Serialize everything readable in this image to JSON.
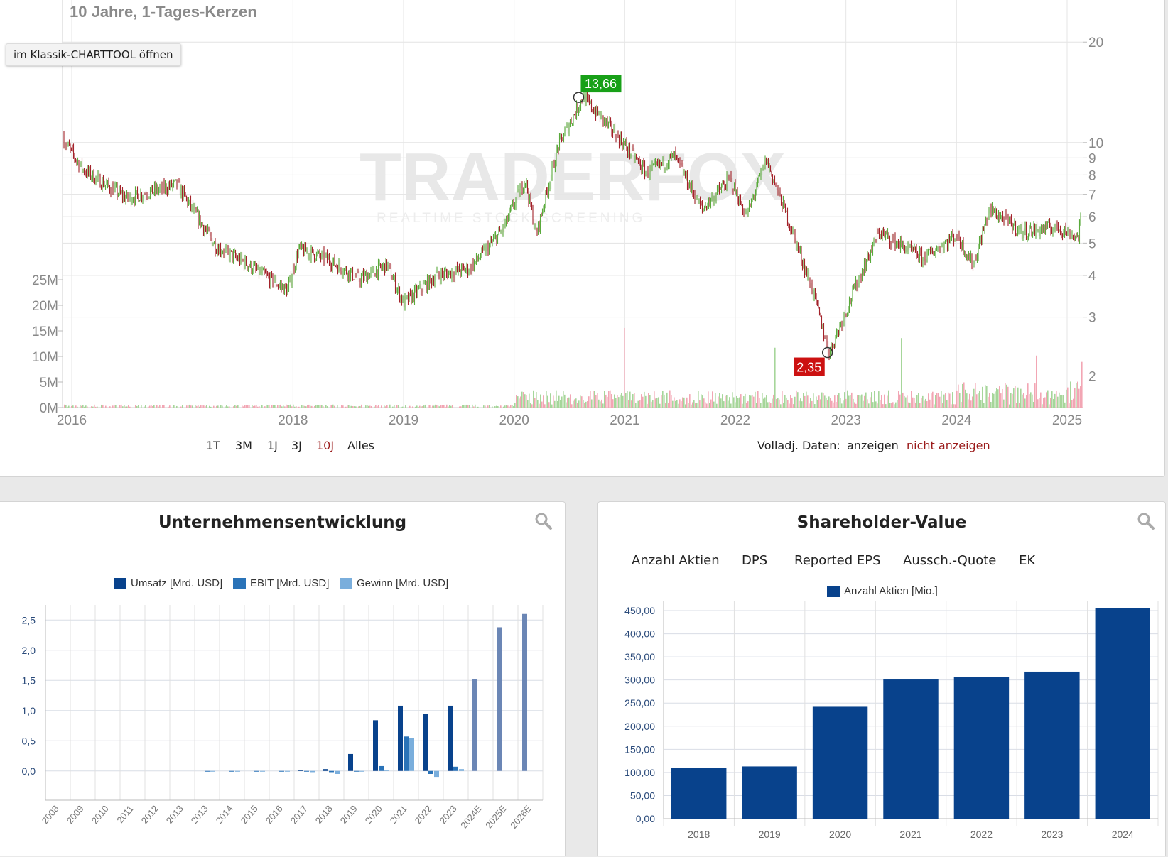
{
  "price_chart": {
    "title": "10 Jahre, 1-Tages-Kerzen",
    "klassik_button": "im Klassik-CHARTTOOL öffnen",
    "high_marker": "13,66",
    "low_marker": "2,35",
    "watermark": {
      "brand": "TRADERFOX",
      "tagline": "REALTIME STOCK SCREENING"
    },
    "price_ticks": [
      "20",
      "10",
      "9",
      "8",
      "7",
      "6",
      "5",
      "4",
      "3",
      "2"
    ],
    "volume_ticks": [
      "25M",
      "20M",
      "15M",
      "10M",
      "5M",
      "0M"
    ],
    "year_ticks": [
      "2016",
      "2018",
      "2019",
      "2020",
      "2021",
      "2022",
      "2023",
      "2024",
      "2025"
    ],
    "range_buttons": [
      "1T",
      "3M",
      "1J",
      "3J",
      "10J",
      "Alles"
    ],
    "active_range": "10J",
    "volladj_label": "Volladj. Daten:",
    "volladj_show": "anzeigen",
    "volladj_hide": "nicht anzeigen",
    "colors": {
      "up": "#5aaa3c",
      "down": "#a3222a",
      "vol_up": "#a6d69a",
      "vol_down": "#f2a6b4",
      "high": "#18a018",
      "low": "#cc1111"
    },
    "chart_data": {
      "type": "candlestick",
      "y_scale": "log",
      "y_range": [
        1.8,
        24
      ],
      "x_range": [
        "2016",
        "2025"
      ],
      "high": {
        "value": 13.66,
        "date": "2020-08"
      },
      "low": {
        "value": 2.35,
        "date": "2022-11"
      },
      "close_path": [
        {
          "x": 2015.9,
          "y": 10.5
        },
        {
          "x": 2016.1,
          "y": 8.3
        },
        {
          "x": 2016.5,
          "y": 6.8
        },
        {
          "x": 2016.95,
          "y": 7.5
        },
        {
          "x": 2017.3,
          "y": 4.9
        },
        {
          "x": 2017.6,
          "y": 4.3
        },
        {
          "x": 2017.95,
          "y": 3.6
        },
        {
          "x": 2018.05,
          "y": 4.8
        },
        {
          "x": 2018.3,
          "y": 4.5
        },
        {
          "x": 2018.6,
          "y": 3.9
        },
        {
          "x": 2018.85,
          "y": 4.3
        },
        {
          "x": 2019.0,
          "y": 3.3
        },
        {
          "x": 2019.3,
          "y": 4.0
        },
        {
          "x": 2019.6,
          "y": 4.2
        },
        {
          "x": 2019.9,
          "y": 5.5
        },
        {
          "x": 2020.1,
          "y": 7.8
        },
        {
          "x": 2020.2,
          "y": 5.3
        },
        {
          "x": 2020.4,
          "y": 9.8
        },
        {
          "x": 2020.62,
          "y": 13.66
        },
        {
          "x": 2020.9,
          "y": 10.8
        },
        {
          "x": 2021.2,
          "y": 8.1
        },
        {
          "x": 2021.45,
          "y": 9.1
        },
        {
          "x": 2021.7,
          "y": 6.3
        },
        {
          "x": 2021.95,
          "y": 7.8
        },
        {
          "x": 2022.1,
          "y": 6.0
        },
        {
          "x": 2022.28,
          "y": 8.9
        },
        {
          "x": 2022.5,
          "y": 5.6
        },
        {
          "x": 2022.7,
          "y": 3.6
        },
        {
          "x": 2022.85,
          "y": 2.35
        },
        {
          "x": 2023.1,
          "y": 3.8
        },
        {
          "x": 2023.3,
          "y": 5.4
        },
        {
          "x": 2023.7,
          "y": 4.5
        },
        {
          "x": 2024.0,
          "y": 5.3
        },
        {
          "x": 2024.15,
          "y": 4.3
        },
        {
          "x": 2024.3,
          "y": 6.3
        },
        {
          "x": 2024.6,
          "y": 5.4
        },
        {
          "x": 2024.9,
          "y": 5.6
        },
        {
          "x": 2025.1,
          "y": 5.2
        },
        {
          "x": 2025.15,
          "y": 7.1
        }
      ]
    }
  },
  "company_panel": {
    "title": "Unternehmensentwicklung",
    "legend": [
      "Umsatz [Mrd. USD]",
      "EBIT [Mrd. USD]",
      "Gewinn [Mrd. USD]"
    ],
    "colors": [
      "#08428c",
      "#2a73b8",
      "#7aaedc"
    ],
    "estimate_color": "#6b86b5",
    "chart_data": {
      "type": "bar",
      "categories": [
        "2008",
        "2009",
        "2010",
        "2011",
        "2012",
        "2013",
        "2013",
        "2014",
        "2015",
        "2016",
        "2017",
        "2018",
        "2019",
        "2020",
        "2021",
        "2022",
        "2023",
        "2024E",
        "2025E",
        "2026E"
      ],
      "ylim": [
        -0.25,
        2.75
      ],
      "yticks": [
        "0,0",
        "0,5",
        "1,0",
        "1,5",
        "2,0",
        "2,5"
      ],
      "series": [
        {
          "name": "Umsatz [Mrd. USD]",
          "values": [
            null,
            null,
            null,
            null,
            null,
            null,
            null,
            null,
            null,
            null,
            0.02,
            0.03,
            0.28,
            0.84,
            1.08,
            0.95,
            1.08,
            1.52,
            2.38,
            2.6
          ]
        },
        {
          "name": "EBIT [Mrd. USD]",
          "values": [
            null,
            null,
            null,
            null,
            null,
            null,
            -0.01,
            -0.01,
            -0.01,
            -0.01,
            -0.01,
            -0.02,
            -0.01,
            0.08,
            0.57,
            -0.05,
            0.07,
            null,
            null,
            null
          ]
        },
        {
          "name": "Gewinn [Mrd. USD]",
          "values": [
            null,
            null,
            null,
            null,
            null,
            null,
            -0.01,
            -0.01,
            -0.01,
            -0.01,
            -0.02,
            -0.05,
            -0.01,
            0.02,
            0.55,
            -0.11,
            0.03,
            null,
            null,
            null
          ]
        }
      ]
    }
  },
  "shareholder_panel": {
    "title": "Shareholder-Value",
    "tabs": [
      "Anzahl Aktien",
      "DPS",
      "Reported EPS",
      "Aussch.-Quote",
      "EK"
    ],
    "active_tab": "Anzahl Aktien",
    "legend": "Anzahl Aktien [Mio.]",
    "color": "#08428c",
    "chart_data": {
      "type": "bar",
      "categories": [
        "2018",
        "2019",
        "2020",
        "2021",
        "2022",
        "2023",
        "2024"
      ],
      "values": [
        110,
        113,
        242,
        301,
        307,
        318,
        455
      ],
      "ylim": [
        0,
        470
      ],
      "yticks": [
        "0,00",
        "50,00",
        "100,00",
        "150,00",
        "200,00",
        "250,00",
        "300,00",
        "350,00",
        "400,00",
        "450,00"
      ]
    }
  }
}
